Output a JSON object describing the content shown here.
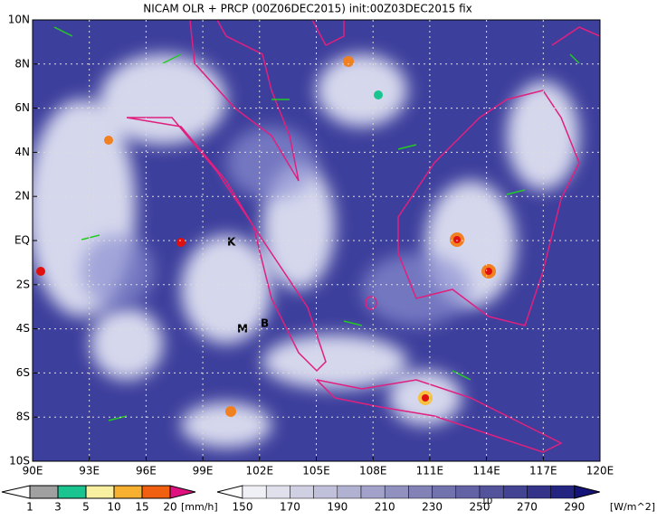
{
  "header": {
    "title": "NICAM OLR + PRCP (00Z06DEC2015) init:00Z03DEC2015 fix"
  },
  "map": {
    "lat_labels": [
      "10N",
      "8N",
      "6N",
      "4N",
      "2N",
      "EQ",
      "2S",
      "4S",
      "6S",
      "8S",
      "10S"
    ],
    "lon_labels": [
      "90E",
      "93E",
      "96E",
      "99E",
      "102E",
      "105E",
      "108E",
      "111E",
      "114E",
      "117E",
      "120E"
    ],
    "place_markers": [
      "K",
      "M",
      "B"
    ],
    "vector_reference": "10"
  },
  "legend": {
    "precip": {
      "labels": [
        1,
        3,
        5,
        10,
        15,
        20
      ],
      "unit": "[mm/h]"
    },
    "olr": {
      "labels": [
        150,
        170,
        190,
        210,
        230,
        250,
        270,
        290
      ],
      "unit": "[W/m^2]"
    }
  }
}
